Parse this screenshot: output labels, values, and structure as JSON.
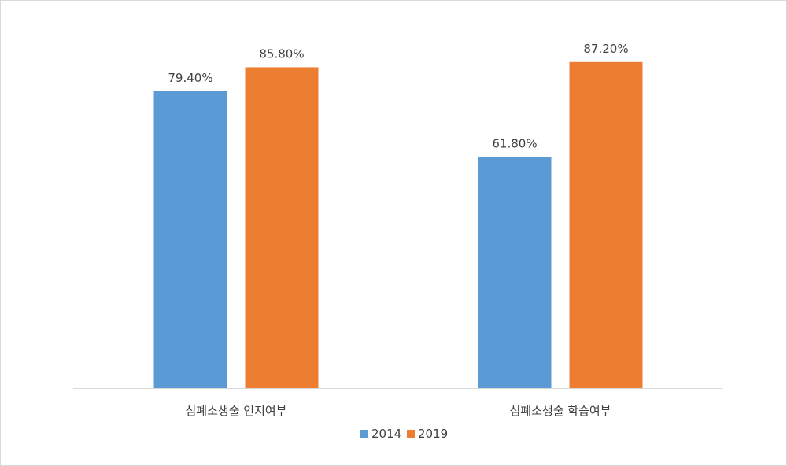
{
  "chart_data": {
    "type": "bar",
    "categories": [
      "심폐소생술 인지여부",
      "심폐소생술 학습여부"
    ],
    "series": [
      {
        "name": "2014",
        "values": [
          79.4,
          61.8
        ],
        "labels": [
          "79.40%",
          "61.80%"
        ],
        "color": "#5B9BD5"
      },
      {
        "name": "2019",
        "values": [
          85.8,
          87.2
        ],
        "labels": [
          "85.80%",
          "87.20%"
        ],
        "color": "#ED7D31"
      }
    ],
    "ylim": [
      0,
      100
    ],
    "value_format": "percent",
    "grid": false,
    "legend": "bottom",
    "axis_color": "#d9d9d9"
  }
}
